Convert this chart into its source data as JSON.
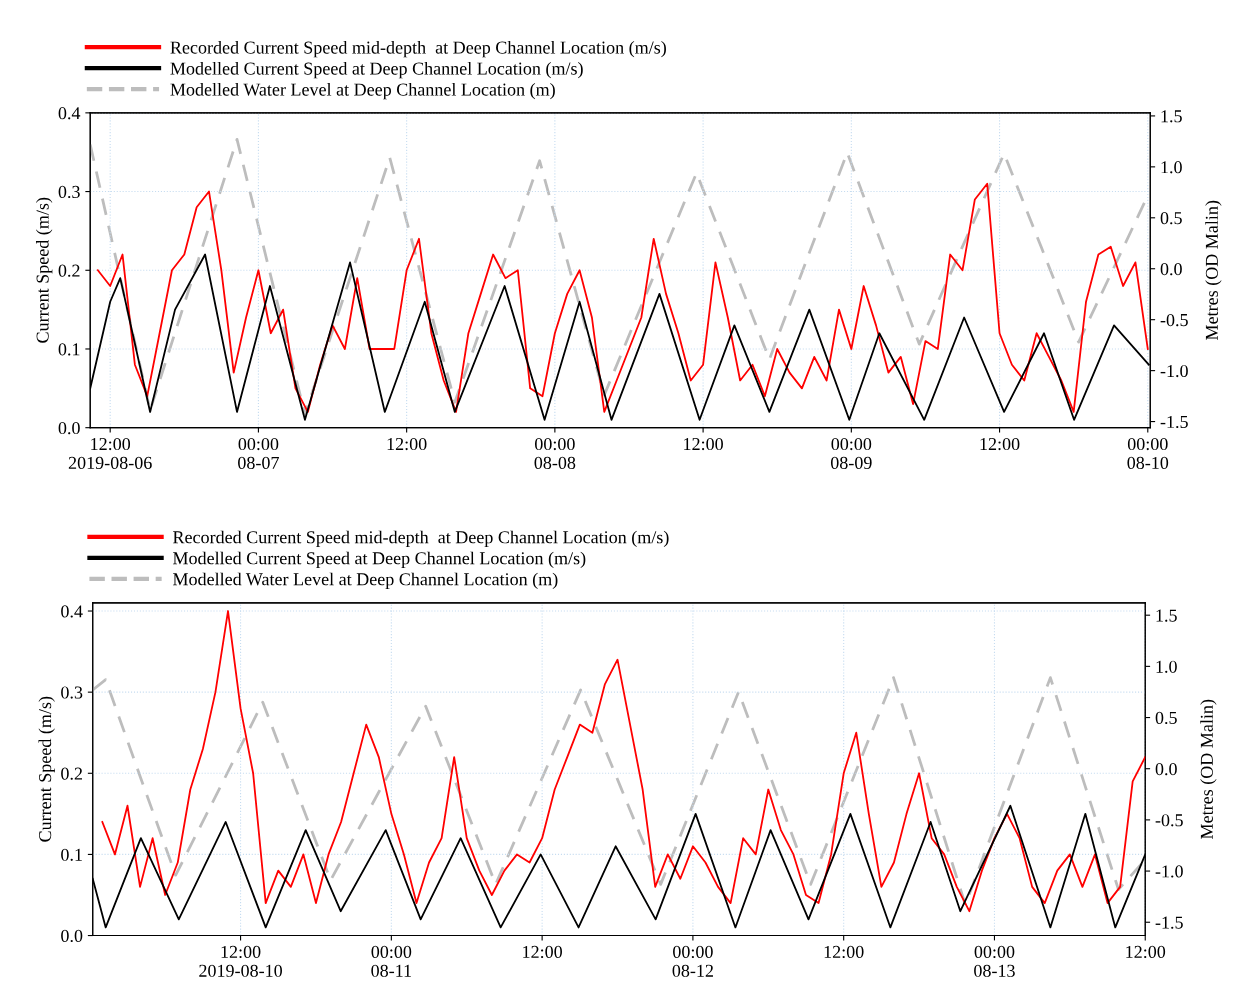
{
  "chart_data": [
    {
      "type": "line",
      "ylabel": "Current Speed (m/s)",
      "y2label": "Metres (OD Malin)",
      "legend": "top left",
      "grid": true,
      "xlim": [
        "2019-08-06T10:23",
        "2019-08-10T00:12"
      ],
      "xticks": [
        {
          "value": "2019-08-06T12:00",
          "label": "12:00\n2019-08-06"
        },
        {
          "value": "2019-08-07T00:00",
          "label": "00:00\n08-07"
        },
        {
          "value": "2019-08-07T12:00",
          "label": "12:00"
        },
        {
          "value": "2019-08-08T00:00",
          "label": "00:00\n08-08"
        },
        {
          "value": "2019-08-08T12:00",
          "label": "12:00"
        },
        {
          "value": "2019-08-09T00:00",
          "label": "00:00\n08-09"
        },
        {
          "value": "2019-08-09T12:00",
          "label": "12:00"
        },
        {
          "value": "2019-08-10T00:00",
          "label": "00:00\n08-10"
        }
      ],
      "ylim": [
        0,
        0.4
      ],
      "yticks": [
        {
          "value": 0,
          "label": "0.0"
        },
        {
          "value": 0.1,
          "label": "0.1"
        },
        {
          "value": 0.2,
          "label": "0.2"
        },
        {
          "value": 0.3,
          "label": "0.3"
        },
        {
          "value": 0.4,
          "label": "0.4"
        }
      ],
      "y2lim": [
        -1.56,
        1.53
      ],
      "y2ticks": [
        {
          "value": -1.5,
          "label": "-1.5"
        },
        {
          "value": -1.0,
          "label": "-1.0"
        },
        {
          "value": -0.5,
          "label": "-0.5"
        },
        {
          "value": 0.0,
          "label": "0.0"
        },
        {
          "value": 0.5,
          "label": "0.5"
        },
        {
          "value": 1.0,
          "label": "1.0"
        },
        {
          "value": 1.5,
          "label": "1.5"
        }
      ],
      "series": [
        {
          "name": "Recorded Current Speed mid-depth  at Deep Channel Location (m/s)",
          "color": "#ff0000",
          "line_style": "solid",
          "x": [
            "2019-08-06T11:00",
            "2019-08-06T12:00",
            "2019-08-06T13:00",
            "2019-08-06T14:00",
            "2019-08-06T15:00",
            "2019-08-06T16:00",
            "2019-08-06T17:00",
            "2019-08-06T18:00",
            "2019-08-06T19:00",
            "2019-08-06T20:00",
            "2019-08-06T21:00",
            "2019-08-06T22:00",
            "2019-08-06T23:00",
            "2019-08-07T00:00",
            "2019-08-07T01:00",
            "2019-08-07T02:00",
            "2019-08-07T03:00",
            "2019-08-07T04:00",
            "2019-08-07T05:00",
            "2019-08-07T06:00",
            "2019-08-07T07:00",
            "2019-08-07T08:00",
            "2019-08-07T09:00",
            "2019-08-07T10:00",
            "2019-08-07T11:00",
            "2019-08-07T12:00",
            "2019-08-07T13:00",
            "2019-08-07T14:00",
            "2019-08-07T15:00",
            "2019-08-07T16:00",
            "2019-08-07T17:00",
            "2019-08-07T18:00",
            "2019-08-07T19:00",
            "2019-08-07T20:00",
            "2019-08-07T21:00",
            "2019-08-07T22:00",
            "2019-08-07T23:00",
            "2019-08-08T00:00",
            "2019-08-08T01:00",
            "2019-08-08T02:00",
            "2019-08-08T03:00",
            "2019-08-08T04:00",
            "2019-08-08T05:00",
            "2019-08-08T06:00",
            "2019-08-08T07:00",
            "2019-08-08T08:00",
            "2019-08-08T09:00",
            "2019-08-08T10:00",
            "2019-08-08T11:00",
            "2019-08-08T12:00",
            "2019-08-08T13:00",
            "2019-08-08T14:00",
            "2019-08-08T15:00",
            "2019-08-08T16:00",
            "2019-08-08T17:00",
            "2019-08-08T18:00",
            "2019-08-08T19:00",
            "2019-08-08T20:00",
            "2019-08-08T21:00",
            "2019-08-08T22:00",
            "2019-08-08T23:00",
            "2019-08-09T00:00",
            "2019-08-09T01:00",
            "2019-08-09T02:00",
            "2019-08-09T03:00",
            "2019-08-09T04:00",
            "2019-08-09T05:00",
            "2019-08-09T06:00",
            "2019-08-09T07:00",
            "2019-08-09T08:00",
            "2019-08-09T09:00",
            "2019-08-09T10:00",
            "2019-08-09T11:00",
            "2019-08-09T12:00",
            "2019-08-09T13:00",
            "2019-08-09T14:00",
            "2019-08-09T15:00",
            "2019-08-09T16:00",
            "2019-08-09T17:00",
            "2019-08-09T18:00",
            "2019-08-09T19:00",
            "2019-08-09T20:00",
            "2019-08-09T21:00",
            "2019-08-09T22:00",
            "2019-08-09T23:00",
            "2019-08-10T00:00"
          ],
          "values": [
            0.2,
            0.18,
            0.22,
            0.08,
            0.04,
            0.12,
            0.2,
            0.22,
            0.28,
            0.3,
            0.2,
            0.07,
            0.14,
            0.2,
            0.12,
            0.15,
            0.05,
            0.02,
            0.08,
            0.13,
            0.1,
            0.19,
            0.1,
            0.1,
            0.1,
            0.2,
            0.24,
            0.12,
            0.06,
            0.02,
            0.12,
            0.17,
            0.22,
            0.19,
            0.2,
            0.05,
            0.04,
            0.12,
            0.17,
            0.2,
            0.14,
            0.02,
            0.06,
            0.1,
            0.14,
            0.24,
            0.17,
            0.12,
            0.06,
            0.08,
            0.21,
            0.14,
            0.06,
            0.08,
            0.04,
            0.1,
            0.07,
            0.05,
            0.09,
            0.06,
            0.15,
            0.1,
            0.18,
            0.13,
            0.07,
            0.09,
            0.03,
            0.11,
            0.1,
            0.22,
            0.2,
            0.29,
            0.31,
            0.12,
            0.08,
            0.06,
            0.12,
            0.09,
            0.06,
            0.02,
            0.16,
            0.22,
            0.23,
            0.18,
            0.21,
            0.1
          ]
        },
        {
          "name": "Modelled Current Speed at Deep Channel Location (m/s)",
          "color": "#000000",
          "line_style": "solid",
          "x": [
            "2019-08-06T10:23",
            "2019-08-06T12:00",
            "2019-08-06T12:49",
            "2019-08-06T15:14",
            "2019-08-06T17:15",
            "2019-08-06T19:41",
            "2019-08-06T22:16",
            "2019-08-07T00:56",
            "2019-08-07T03:46",
            "2019-08-07T07:25",
            "2019-08-07T10:14",
            "2019-08-07T13:28",
            "2019-08-07T15:54",
            "2019-08-07T19:56",
            "2019-08-07T23:10",
            "2019-08-08T02:00",
            "2019-08-08T04:35",
            "2019-08-08T08:28",
            "2019-08-08T11:43",
            "2019-08-08T14:32",
            "2019-08-08T17:22",
            "2019-08-08T20:36",
            "2019-08-08T23:50",
            "2019-08-09T02:16",
            "2019-08-09T05:54",
            "2019-08-09T09:08",
            "2019-08-09T12:22",
            "2019-08-09T15:36",
            "2019-08-09T18:02",
            "2019-08-09T21:16",
            "2019-08-10T00:05"
          ],
          "values": [
            0.05,
            0.16,
            0.19,
            0.02,
            0.15,
            0.22,
            0.02,
            0.18,
            0.01,
            0.21,
            0.02,
            0.16,
            0.02,
            0.18,
            0.01,
            0.16,
            0.01,
            0.17,
            0.01,
            0.13,
            0.02,
            0.15,
            0.01,
            0.12,
            0.01,
            0.14,
            0.02,
            0.12,
            0.01,
            0.13,
            0.08
          ]
        },
        {
          "name": "Modelled Water Level at Deep Channel Location (m)",
          "color": "#bdbdbd",
          "line_style": "dashed",
          "axis": "y2",
          "x": [
            "2019-08-06T10:23",
            "2019-08-06T12:48",
            "2019-08-06T15:14",
            "2019-08-06T18:45",
            "2019-08-06T22:16",
            "2019-08-07T01:01",
            "2019-08-07T03:46",
            "2019-08-07T07:12",
            "2019-08-07T10:38",
            "2019-08-07T13:16",
            "2019-08-07T15:54",
            "2019-08-07T19:20",
            "2019-08-07T22:46",
            "2019-08-08T01:23",
            "2019-08-08T04:00",
            "2019-08-08T07:44",
            "2019-08-08T11:28",
            "2019-08-08T14:25",
            "2019-08-08T17:22",
            "2019-08-08T20:31",
            "2019-08-08T23:40",
            "2019-08-09T02:35",
            "2019-08-09T05:30",
            "2019-08-09T08:56",
            "2019-08-09T12:22",
            "2019-08-09T15:23",
            "2019-08-09T18:24",
            "2019-08-09T21:15",
            "2019-08-10T00:05"
          ],
          "values": [
            1.22,
            -0.08,
            -1.39,
            -0.06,
            1.27,
            -0.08,
            -1.43,
            -0.17,
            1.09,
            -0.11,
            -1.31,
            -0.13,
            1.06,
            -0.09,
            -1.24,
            -0.15,
            0.94,
            0.03,
            -0.89,
            0.13,
            1.14,
            0.2,
            -0.74,
            0.2,
            1.13,
            0.21,
            -0.72,
            0.01,
            0.74
          ]
        }
      ]
    },
    {
      "type": "line",
      "ylabel": "Current Speed (m/s)",
      "y2label": "Metres (OD Malin)",
      "legend": "top left",
      "grid": true,
      "xlim": [
        "2019-08-10T00:14",
        "2019-08-13T12:00"
      ],
      "xticks": [
        {
          "value": "2019-08-10T12:00",
          "label": "12:00\n2019-08-10"
        },
        {
          "value": "2019-08-11T00:00",
          "label": "00:00\n08-11"
        },
        {
          "value": "2019-08-11T12:00",
          "label": "12:00"
        },
        {
          "value": "2019-08-12T00:00",
          "label": "00:00\n08-12"
        },
        {
          "value": "2019-08-12T12:00",
          "label": "12:00"
        },
        {
          "value": "2019-08-13T00:00",
          "label": "00:00\n08-13"
        },
        {
          "value": "2019-08-13T12:00",
          "label": "12:00"
        }
      ],
      "ylim": [
        0,
        0.41
      ],
      "yticks": [
        {
          "value": 0,
          "label": "0.0"
        },
        {
          "value": 0.1,
          "label": "0.1"
        },
        {
          "value": 0.2,
          "label": "0.2"
        },
        {
          "value": 0.3,
          "label": "0.3"
        },
        {
          "value": 0.4,
          "label": "0.4"
        }
      ],
      "y2lim": [
        -1.63,
        1.62
      ],
      "y2ticks": [
        {
          "value": -1.5,
          "label": "-1.5"
        },
        {
          "value": -1.0,
          "label": "-1.0"
        },
        {
          "value": -0.5,
          "label": "-0.5"
        },
        {
          "value": 0.0,
          "label": "0.0"
        },
        {
          "value": 0.5,
          "label": "0.5"
        },
        {
          "value": 1.0,
          "label": "1.0"
        },
        {
          "value": 1.5,
          "label": "1.5"
        }
      ],
      "series": [
        {
          "name": "Recorded Current Speed mid-depth  at Deep Channel Location (m/s)",
          "color": "#ff0000",
          "line_style": "solid",
          "x": [
            "2019-08-10T01:00",
            "2019-08-10T02:00",
            "2019-08-10T03:00",
            "2019-08-10T04:00",
            "2019-08-10T05:00",
            "2019-08-10T06:00",
            "2019-08-10T07:00",
            "2019-08-10T08:00",
            "2019-08-10T09:00",
            "2019-08-10T10:00",
            "2019-08-10T11:00",
            "2019-08-10T12:00",
            "2019-08-10T13:00",
            "2019-08-10T14:00",
            "2019-08-10T15:00",
            "2019-08-10T16:00",
            "2019-08-10T17:00",
            "2019-08-10T18:00",
            "2019-08-10T19:00",
            "2019-08-10T20:00",
            "2019-08-10T21:00",
            "2019-08-10T22:00",
            "2019-08-10T23:00",
            "2019-08-11T00:00",
            "2019-08-11T01:00",
            "2019-08-11T02:00",
            "2019-08-11T03:00",
            "2019-08-11T04:00",
            "2019-08-11T05:00",
            "2019-08-11T06:00",
            "2019-08-11T07:00",
            "2019-08-11T08:00",
            "2019-08-11T09:00",
            "2019-08-11T10:00",
            "2019-08-11T11:00",
            "2019-08-11T12:00",
            "2019-08-11T13:00",
            "2019-08-11T14:00",
            "2019-08-11T15:00",
            "2019-08-11T16:00",
            "2019-08-11T17:00",
            "2019-08-11T18:00",
            "2019-08-11T19:00",
            "2019-08-11T20:00",
            "2019-08-11T21:00",
            "2019-08-11T22:00",
            "2019-08-11T23:00",
            "2019-08-12T00:00",
            "2019-08-12T01:00",
            "2019-08-12T02:00",
            "2019-08-12T03:00",
            "2019-08-12T04:00",
            "2019-08-12T05:00",
            "2019-08-12T06:00",
            "2019-08-12T07:00",
            "2019-08-12T08:00",
            "2019-08-12T09:00",
            "2019-08-12T10:00",
            "2019-08-12T11:00",
            "2019-08-12T12:00",
            "2019-08-12T13:00",
            "2019-08-12T14:00",
            "2019-08-12T15:00",
            "2019-08-12T16:00",
            "2019-08-12T17:00",
            "2019-08-12T18:00",
            "2019-08-12T19:00",
            "2019-08-12T20:00",
            "2019-08-12T21:00",
            "2019-08-12T22:00",
            "2019-08-12T23:00",
            "2019-08-13T00:00",
            "2019-08-13T01:00",
            "2019-08-13T02:00",
            "2019-08-13T03:00",
            "2019-08-13T04:00",
            "2019-08-13T05:00",
            "2019-08-13T06:00",
            "2019-08-13T07:00",
            "2019-08-13T08:00",
            "2019-08-13T09:00",
            "2019-08-13T10:00",
            "2019-08-13T11:00",
            "2019-08-13T12:00"
          ],
          "values": [
            0.14,
            0.1,
            0.16,
            0.06,
            0.12,
            0.05,
            0.09,
            0.18,
            0.23,
            0.3,
            0.4,
            0.28,
            0.2,
            0.04,
            0.08,
            0.06,
            0.1,
            0.04,
            0.1,
            0.14,
            0.2,
            0.26,
            0.22,
            0.15,
            0.1,
            0.04,
            0.09,
            0.12,
            0.22,
            0.12,
            0.08,
            0.05,
            0.08,
            0.1,
            0.09,
            0.12,
            0.18,
            0.22,
            0.26,
            0.25,
            0.31,
            0.34,
            0.26,
            0.18,
            0.06,
            0.1,
            0.07,
            0.11,
            0.09,
            0.06,
            0.04,
            0.12,
            0.1,
            0.18,
            0.13,
            0.1,
            0.05,
            0.04,
            0.1,
            0.2,
            0.25,
            0.15,
            0.06,
            0.09,
            0.15,
            0.2,
            0.12,
            0.1,
            0.06,
            0.03,
            0.08,
            0.12,
            0.15,
            0.12,
            0.06,
            0.04,
            0.08,
            0.1,
            0.06,
            0.1,
            0.04,
            0.06,
            0.19,
            0.22
          ]
        },
        {
          "name": "Modelled Current Speed at Deep Channel Location (m/s)",
          "color": "#000000",
          "line_style": "solid",
          "x": [
            "2019-08-10T00:14",
            "2019-08-10T01:16",
            "2019-08-10T04:04",
            "2019-08-10T07:05",
            "2019-08-10T10:49",
            "2019-08-10T14:00",
            "2019-08-10T17:11",
            "2019-08-10T19:58",
            "2019-08-10T23:33",
            "2019-08-11T02:20",
            "2019-08-11T05:31",
            "2019-08-11T08:42",
            "2019-08-11T11:53",
            "2019-08-11T14:54",
            "2019-08-11T17:51",
            "2019-08-11T21:02",
            "2019-08-12T00:13",
            "2019-08-12T03:23",
            "2019-08-12T06:11",
            "2019-08-12T09:12",
            "2019-08-12T12:32",
            "2019-08-12T15:43",
            "2019-08-12T18:55",
            "2019-08-12T21:17",
            "2019-08-13T01:16",
            "2019-08-13T04:27",
            "2019-08-13T07:14",
            "2019-08-13T09:37",
            "2019-08-13T12:00"
          ],
          "values": [
            0.07,
            0.01,
            0.12,
            0.02,
            0.14,
            0.01,
            0.13,
            0.03,
            0.13,
            0.02,
            0.12,
            0.01,
            0.1,
            0.01,
            0.11,
            0.02,
            0.15,
            0.01,
            0.13,
            0.02,
            0.15,
            0.01,
            0.14,
            0.03,
            0.16,
            0.01,
            0.15,
            0.01,
            0.1
          ]
        },
        {
          "name": "Modelled Water Level at Deep Channel Location (m)",
          "color": "#bdbdbd",
          "line_style": "dashed",
          "axis": "y2",
          "x": [
            "2019-08-10T00:14",
            "2019-08-10T01:16",
            "2019-08-10T04:03",
            "2019-08-10T06:50",
            "2019-08-10T10:18",
            "2019-08-10T13:46",
            "2019-08-10T16:28",
            "2019-08-10T19:10",
            "2019-08-10T22:57",
            "2019-08-11T02:44",
            "2019-08-11T05:31",
            "2019-08-11T08:18",
            "2019-08-11T11:41",
            "2019-08-11T15:04",
            "2019-08-11T18:15",
            "2019-08-11T21:26",
            "2019-08-12T00:32",
            "2019-08-12T03:38",
            "2019-08-12T06:30",
            "2019-08-12T09:22",
            "2019-08-12T12:40",
            "2019-08-12T15:58",
            "2019-08-12T18:50",
            "2019-08-12T21:41",
            "2019-08-13T01:04",
            "2019-08-13T04:27",
            "2019-08-13T07:10",
            "2019-08-13T09:52",
            "2019-08-13T12:00"
          ],
          "values": [
            0.77,
            0.87,
            -0.09,
            -1.04,
            -0.2,
            0.65,
            -0.22,
            -1.09,
            -0.24,
            0.61,
            -0.26,
            -1.13,
            -0.18,
            0.77,
            -0.18,
            -1.13,
            -0.19,
            0.75,
            -0.19,
            -1.13,
            -0.12,
            0.89,
            -0.22,
            -1.33,
            -0.22,
            0.89,
            -0.15,
            -1.18,
            -0.89
          ]
        }
      ]
    }
  ]
}
